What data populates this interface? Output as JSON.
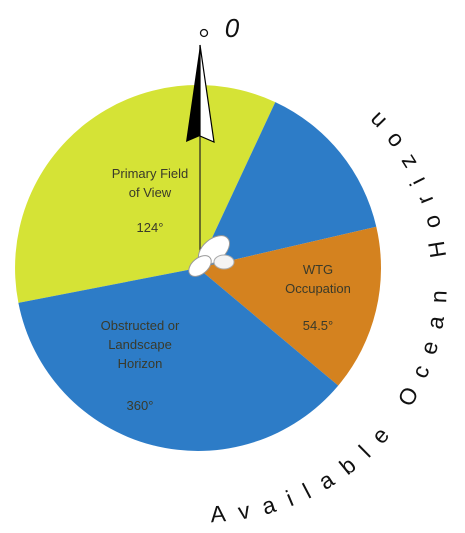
{
  "diagram": {
    "north_label": "0",
    "arc_text": "Available Ocean Horizon",
    "segments": [
      {
        "label_lines": [
          "Primary Field",
          "of View"
        ],
        "angle": "124°"
      },
      {
        "label_lines": [
          "WTG",
          "Occupation"
        ],
        "angle": "54.5°"
      },
      {
        "label_lines": [
          "Obstructed or",
          "Landscape",
          "Horizon"
        ],
        "angle": "360°"
      }
    ]
  }
}
